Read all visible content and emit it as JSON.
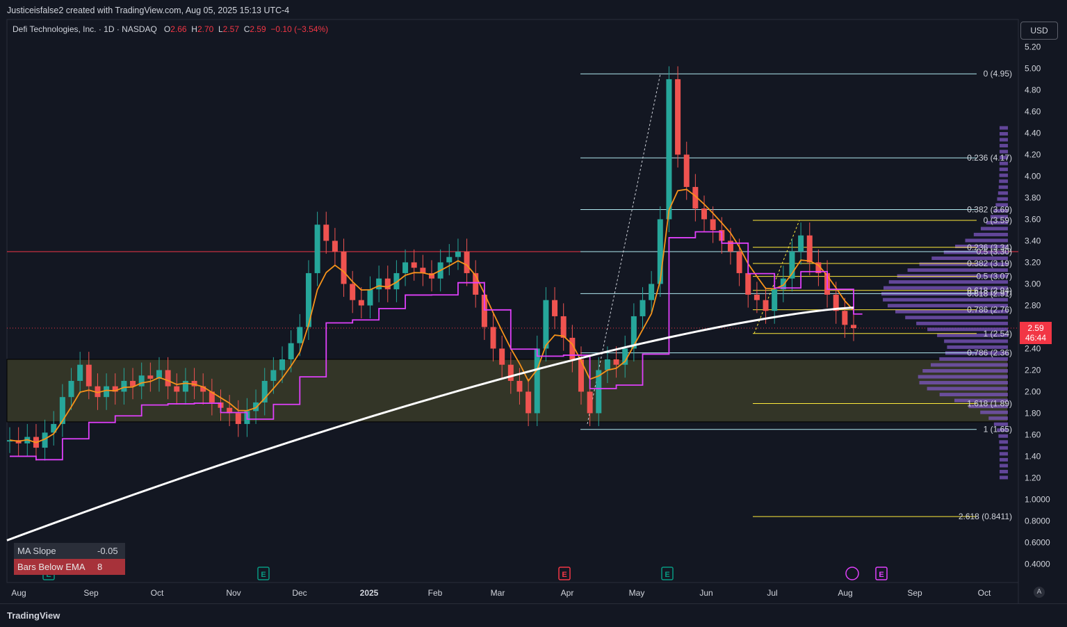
{
  "header": {
    "attribution": "Justiceisfalse2 created with TradingView.com, Aug 05, 2025 15:13 UTC-4"
  },
  "legend": {
    "symbol": "Defi Technologies, Inc. · 1D · NASDAQ",
    "o_label": "O",
    "o": "2.66",
    "h_label": "H",
    "h": "2.70",
    "l_label": "L",
    "l": "2.57",
    "c_label": "C",
    "c": "2.59",
    "change": "−0.10 (−3.54%)"
  },
  "currency_button": "USD",
  "price_label": {
    "price": "2.59",
    "countdown": "46:44"
  },
  "stats_table": {
    "rows": [
      {
        "label": "MA Slope",
        "value": "-0.05"
      },
      {
        "label": "Bars Below EMA",
        "value": "8"
      }
    ]
  },
  "footer": {
    "brand": "TradingView"
  },
  "autoscale_button": "A",
  "colors": {
    "up": "#26a69a",
    "down": "#ef5350",
    "ema": "#f7931a",
    "step": "#e040fb",
    "ma200": "#ffffff",
    "fib": "#b2ebf2",
    "fib2": "#ffeb3b"
  },
  "chart_data": {
    "type": "candlestick",
    "y_ticks": [
      "5.20",
      "5.00",
      "4.80",
      "4.60",
      "4.40",
      "4.20",
      "4.00",
      "3.80",
      "3.60",
      "3.40",
      "3.20",
      "3.00",
      "2.80",
      "2.60",
      "2.40",
      "2.20",
      "2.00",
      "1.80",
      "1.60",
      "1.40",
      "1.20",
      "1.0000",
      "0.8000",
      "0.6000",
      "0.4000"
    ],
    "x_ticks": [
      "Aug",
      "Sep",
      "Oct",
      "Nov",
      "Dec",
      "2025",
      "Feb",
      "Mar",
      "Apr",
      "May",
      "Jun",
      "Jul",
      "Aug",
      "Sep",
      "Oct"
    ],
    "fib_retracement_1": [
      {
        "label": "0 (4.95)",
        "value": 4.95
      },
      {
        "label": "0.236 (4.17)",
        "value": 4.17
      },
      {
        "label": "0.382 (3.69)",
        "value": 3.69
      },
      {
        "label": "0.5 (3.30)",
        "value": 3.3
      },
      {
        "label": "0.618 (2.91)",
        "value": 2.91
      },
      {
        "label": "0.786 (2.36)",
        "value": 2.36
      },
      {
        "label": "1 (1.65)",
        "value": 1.65
      }
    ],
    "fib_retracement_2": [
      {
        "label": "0 (3.59)",
        "value": 3.59
      },
      {
        "label": "0.236 (3.34)",
        "value": 3.34
      },
      {
        "label": "0.382 (3.19)",
        "value": 3.19
      },
      {
        "label": "0.5 (3.07)",
        "value": 3.07
      },
      {
        "label": "0.618 (2.94)",
        "value": 2.94
      },
      {
        "label": "0.786 (2.76)",
        "value": 2.76
      },
      {
        "label": "1 (2.54)",
        "value": 2.54
      },
      {
        "label": "1.618 (1.89)",
        "value": 1.89
      },
      {
        "label": "2.618 (0.8411)",
        "value": 0.8411
      }
    ],
    "resistance_line": 3.3,
    "zone": [
      1.72,
      2.3
    ],
    "last_price": 2.59,
    "event_markers": [
      {
        "x_date": "Aug",
        "type": "E",
        "color": "#089981"
      },
      {
        "x_date": "Nov",
        "type": "E",
        "color": "#089981"
      },
      {
        "x_date": "Apr",
        "type": "E",
        "color": "#f23645"
      },
      {
        "x_date": "May",
        "type": "E",
        "color": "#089981"
      },
      {
        "x_date": "Aug",
        "type": "split",
        "color": "#e040fb"
      },
      {
        "x_date": "Aug",
        "type": "E",
        "color": "#e040fb"
      }
    ],
    "candles_approx": [
      1.55,
      1.52,
      1.58,
      1.48,
      1.62,
      1.7,
      1.95,
      2.1,
      2.25,
      2.05,
      1.95,
      2.05,
      2.0,
      2.1,
      2.05,
      2.15,
      2.12,
      2.2,
      2.05,
      2.0,
      2.1,
      2.05,
      2.0,
      1.9,
      1.85,
      1.8,
      1.7,
      1.82,
      1.9,
      2.1,
      2.2,
      2.3,
      2.45,
      2.6,
      3.1,
      3.55,
      3.4,
      3.3,
      3.0,
      2.85,
      2.8,
      2.95,
      3.05,
      2.95,
      3.1,
      3.2,
      3.15,
      3.1,
      3.05,
      3.2,
      3.25,
      3.3,
      3.1,
      2.9,
      2.6,
      2.4,
      2.25,
      2.1,
      2.0,
      1.8,
      2.4,
      2.85,
      2.7,
      2.5,
      2.3,
      2.0,
      1.8,
      2.2,
      2.3,
      2.25,
      2.4,
      2.7,
      2.85,
      3.0,
      3.6,
      4.9,
      4.2,
      3.9,
      3.7,
      3.6,
      3.5,
      3.4,
      3.3,
      3.1,
      2.9,
      2.85,
      2.75,
      2.95,
      3.05,
      3.3,
      3.45,
      3.2,
      3.1,
      2.9,
      2.75,
      2.62,
      2.59
    ]
  }
}
